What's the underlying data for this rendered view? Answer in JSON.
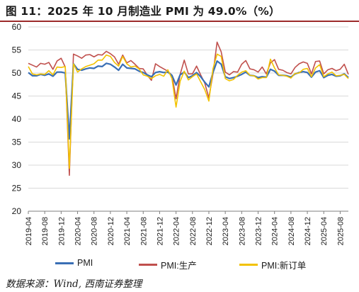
{
  "title": "图 11：2025 年 10 月制造业 PMI 为 49.0%（%）",
  "source": "数据来源：Wind, 西南证券整理",
  "colors": {
    "pmi": "#3a6fb5",
    "production": "#c0504d",
    "new_orders": "#f2c200",
    "title_rule": "#9c2b2b",
    "grid": "#d9d9d9"
  },
  "chart_data": {
    "type": "line",
    "ylim": [
      20,
      60
    ],
    "yticks": [
      "20",
      "25",
      "30",
      "35",
      "40",
      "45",
      "50",
      "55",
      "60"
    ],
    "xtick_labels": [
      "2019-04",
      "2019-08",
      "2019-12",
      "2020-04",
      "2020-08",
      "2020-12",
      "2021-04",
      "2021-08",
      "2021-12",
      "2022-04",
      "2022-08",
      "2022-12",
      "2023-04",
      "2023-08",
      "2023-12",
      "2024-04",
      "2024-08",
      "2024-12",
      "2025-04",
      "2025-08"
    ],
    "x": [
      "2019-04",
      "2019-05",
      "2019-06",
      "2019-07",
      "2019-08",
      "2019-09",
      "2019-10",
      "2019-11",
      "2019-12",
      "2020-01",
      "2020-02",
      "2020-03",
      "2020-04",
      "2020-05",
      "2020-06",
      "2020-07",
      "2020-08",
      "2020-09",
      "2020-10",
      "2020-11",
      "2020-12",
      "2021-01",
      "2021-02",
      "2021-03",
      "2021-04",
      "2021-05",
      "2021-06",
      "2021-07",
      "2021-08",
      "2021-09",
      "2021-10",
      "2021-11",
      "2021-12",
      "2022-01",
      "2022-02",
      "2022-03",
      "2022-04",
      "2022-05",
      "2022-06",
      "2022-07",
      "2022-08",
      "2022-09",
      "2022-10",
      "2022-11",
      "2022-12",
      "2023-01",
      "2023-02",
      "2023-03",
      "2023-04",
      "2023-05",
      "2023-06",
      "2023-07",
      "2023-08",
      "2023-09",
      "2023-10",
      "2023-11",
      "2023-12",
      "2024-01",
      "2024-02",
      "2024-03",
      "2024-04",
      "2024-05",
      "2024-06",
      "2024-07",
      "2024-08",
      "2024-09",
      "2024-10",
      "2024-11",
      "2024-12",
      "2025-01",
      "2025-02",
      "2025-03",
      "2025-04",
      "2025-05",
      "2025-06",
      "2025-07",
      "2025-08",
      "2025-09",
      "2025-10"
    ],
    "series": [
      {
        "name": "PMI",
        "color": "#3a6fb5",
        "values": [
          50.1,
          49.4,
          49.4,
          49.7,
          49.5,
          49.8,
          49.3,
          50.2,
          50.2,
          50.0,
          35.7,
          52.0,
          50.8,
          50.6,
          50.9,
          51.1,
          51.0,
          51.5,
          51.4,
          52.1,
          51.9,
          51.3,
          50.6,
          51.9,
          51.1,
          51.0,
          50.9,
          50.4,
          50.1,
          49.6,
          49.2,
          50.1,
          50.3,
          50.1,
          50.2,
          49.5,
          47.4,
          49.6,
          50.2,
          49.0,
          49.4,
          50.1,
          49.2,
          48.0,
          47.0,
          50.1,
          52.6,
          51.9,
          49.2,
          48.8,
          49.0,
          49.3,
          49.7,
          50.2,
          49.5,
          49.4,
          49.0,
          49.2,
          49.1,
          50.8,
          50.4,
          49.5,
          49.5,
          49.4,
          49.1,
          49.8,
          50.1,
          50.3,
          50.1,
          49.1,
          50.2,
          50.5,
          49.0,
          49.5,
          49.7,
          49.3,
          49.4,
          49.8,
          49.0
        ]
      },
      {
        "name": "PMI:生产",
        "color": "#c0504d",
        "values": [
          52.1,
          51.7,
          51.3,
          52.1,
          51.9,
          52.3,
          50.8,
          52.6,
          53.2,
          51.3,
          27.8,
          54.1,
          53.7,
          53.2,
          53.9,
          54.0,
          53.5,
          54.0,
          53.9,
          54.7,
          54.2,
          53.5,
          51.9,
          53.9,
          52.2,
          52.7,
          51.9,
          51.0,
          50.9,
          49.5,
          48.4,
          52.0,
          51.4,
          50.9,
          50.4,
          49.5,
          44.4,
          49.7,
          52.8,
          49.8,
          49.8,
          51.5,
          49.6,
          47.8,
          44.6,
          49.8,
          56.7,
          54.6,
          50.2,
          49.6,
          50.3,
          50.2,
          51.9,
          52.7,
          50.9,
          50.7,
          50.2,
          51.3,
          49.8,
          52.2,
          52.9,
          50.8,
          50.6,
          50.1,
          49.8,
          51.2,
          52.0,
          52.4,
          52.1,
          49.8,
          52.5,
          52.6,
          49.8,
          50.7,
          51.0,
          50.5,
          50.8,
          51.9,
          49.7
        ]
      },
      {
        "name": "PMI:新订单",
        "color": "#f2c200",
        "values": [
          51.4,
          49.8,
          49.6,
          49.8,
          49.7,
          50.5,
          49.6,
          51.3,
          51.2,
          51.4,
          29.3,
          52.0,
          50.2,
          50.9,
          51.4,
          51.7,
          52.0,
          52.8,
          52.8,
          53.9,
          53.6,
          52.3,
          51.5,
          53.6,
          52.0,
          51.3,
          51.5,
          50.9,
          49.6,
          49.3,
          48.8,
          49.4,
          49.7,
          49.3,
          50.7,
          48.8,
          42.6,
          48.2,
          50.4,
          48.5,
          49.2,
          49.8,
          48.1,
          46.4,
          43.9,
          50.9,
          54.1,
          53.6,
          48.8,
          48.3,
          48.6,
          49.5,
          50.2,
          50.5,
          49.5,
          49.4,
          48.7,
          49.0,
          49.0,
          53.0,
          51.1,
          49.6,
          49.5,
          49.3,
          48.9,
          49.9,
          50.0,
          50.8,
          51.0,
          49.2,
          51.1,
          51.8,
          49.2,
          49.8,
          50.2,
          49.4,
          49.5,
          49.7,
          48.8
        ]
      }
    ]
  }
}
